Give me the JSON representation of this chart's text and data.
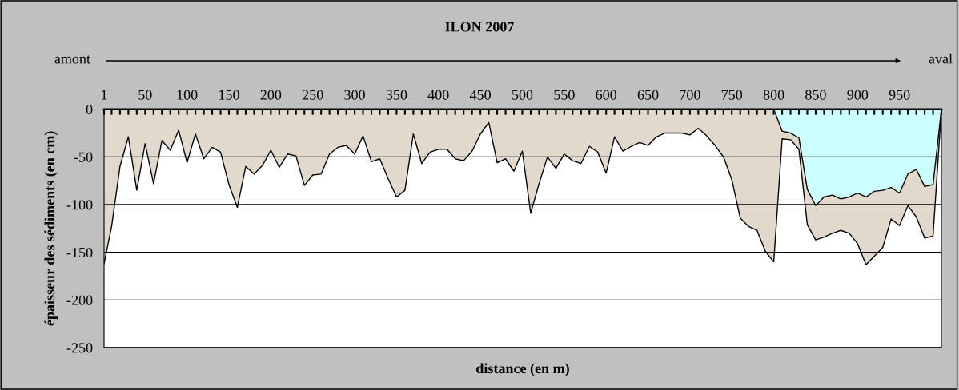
{
  "chart_data": {
    "type": "area",
    "title": "ILON 2007",
    "xlabel": "distance (en m)",
    "ylabel": "épaisseur des sédiments (en cm)",
    "annotations": [
      "amont",
      "aval"
    ],
    "x": [
      1,
      10,
      20,
      30,
      40,
      50,
      60,
      70,
      80,
      90,
      100,
      110,
      120,
      130,
      140,
      150,
      160,
      170,
      180,
      190,
      200,
      210,
      220,
      230,
      240,
      250,
      260,
      270,
      280,
      290,
      300,
      310,
      320,
      330,
      340,
      350,
      360,
      370,
      380,
      390,
      400,
      410,
      420,
      430,
      440,
      450,
      460,
      470,
      480,
      490,
      500,
      510,
      520,
      530,
      540,
      550,
      560,
      570,
      580,
      590,
      600,
      610,
      620,
      630,
      640,
      650,
      660,
      670,
      680,
      690,
      700,
      710,
      720,
      730,
      740,
      750,
      760,
      770,
      780,
      790,
      800,
      810,
      820,
      830,
      840,
      850,
      860,
      870,
      880,
      890,
      900,
      910,
      920,
      930,
      940,
      950,
      960,
      970,
      980,
      990,
      1000
    ],
    "series": [
      {
        "color": "#e0d9cc",
        "values": [
          -162,
          -123,
          -60,
          -29,
          -85,
          -36,
          -78,
          -33,
          -43,
          -22,
          -56,
          -26,
          -52,
          -40,
          -45,
          -79,
          -103,
          -60,
          -68,
          -59,
          -43,
          -61,
          -47,
          -49,
          -80,
          -69,
          -68,
          -47,
          -40,
          -38,
          -47,
          -28,
          -55,
          -52,
          -73,
          -92,
          -85,
          -26,
          -57,
          -45,
          -42,
          -42,
          -52,
          -54,
          -44,
          -26,
          -14,
          -56,
          -52,
          -65,
          -44,
          -109,
          -78,
          -50,
          -62,
          -47,
          -54,
          -57,
          -39,
          -45,
          -67,
          -29,
          -44,
          -39,
          -35,
          -38,
          -29,
          -25,
          -25,
          -25,
          -27,
          -20,
          -28,
          -38,
          -50,
          -74,
          -114,
          -123,
          -127,
          -149,
          -160,
          -31,
          -32,
          -42,
          -121,
          -137,
          -134,
          -130,
          -127,
          -130,
          -141,
          -163,
          -154,
          -145,
          -115,
          -122,
          -101,
          -113,
          -135,
          -133,
          0
        ]
      },
      {
        "color": "#ccffff",
        "values": [
          null,
          null,
          null,
          null,
          null,
          null,
          null,
          null,
          null,
          null,
          null,
          null,
          null,
          null,
          null,
          null,
          null,
          null,
          null,
          null,
          null,
          null,
          null,
          null,
          null,
          null,
          null,
          null,
          null,
          null,
          null,
          null,
          null,
          null,
          null,
          null,
          null,
          null,
          null,
          null,
          null,
          null,
          null,
          null,
          null,
          null,
          null,
          null,
          null,
          null,
          null,
          null,
          null,
          null,
          null,
          null,
          null,
          null,
          null,
          null,
          null,
          null,
          null,
          null,
          null,
          null,
          null,
          null,
          null,
          null,
          null,
          null,
          null,
          null,
          null,
          null,
          null,
          null,
          null,
          null,
          0,
          -23,
          -25,
          -30,
          -84,
          -101,
          -92,
          -90,
          -94,
          -92,
          -88,
          -92,
          -86,
          -85,
          -82,
          -88,
          -68,
          -63,
          -81,
          -79,
          0
        ]
      }
    ],
    "xlim": [
      1,
      1000
    ],
    "xticks": [
      1,
      {
        "value": 10,
        "label": null
      },
      {
        "value": 20,
        "label": null
      },
      {
        "value": 30,
        "label": null
      },
      {
        "value": 40,
        "label": null
      },
      50,
      {
        "value": 60,
        "label": null
      },
      {
        "value": 70,
        "label": null
      },
      {
        "value": 80,
        "label": null
      },
      {
        "value": 90,
        "label": null
      },
      100,
      {
        "value": 110,
        "label": null
      },
      {
        "value": 120,
        "label": null
      },
      {
        "value": 130,
        "label": null
      },
      {
        "value": 140,
        "label": null
      },
      150,
      {
        "value": 160,
        "label": null
      },
      {
        "value": 170,
        "label": null
      },
      {
        "value": 180,
        "label": null
      },
      {
        "value": 190,
        "label": null
      },
      200,
      {
        "value": 210,
        "label": null
      },
      {
        "value": 220,
        "label": null
      },
      {
        "value": 230,
        "label": null
      },
      {
        "value": 240,
        "label": null
      },
      250,
      {
        "value": 260,
        "label": null
      },
      {
        "value": 270,
        "label": null
      },
      {
        "value": 280,
        "label": null
      },
      {
        "value": 290,
        "label": null
      },
      300,
      {
        "value": 310,
        "label": null
      },
      {
        "value": 320,
        "label": null
      },
      {
        "value": 330,
        "label": null
      },
      {
        "value": 340,
        "label": null
      },
      350,
      {
        "value": 360,
        "label": null
      },
      {
        "value": 370,
        "label": null
      },
      {
        "value": 380,
        "label": null
      },
      {
        "value": 390,
        "label": null
      },
      400,
      {
        "value": 410,
        "label": null
      },
      {
        "value": 420,
        "label": null
      },
      {
        "value": 430,
        "label": null
      },
      {
        "value": 440,
        "label": null
      },
      450,
      {
        "value": 460,
        "label": null
      },
      {
        "value": 470,
        "label": null
      },
      {
        "value": 480,
        "label": null
      },
      {
        "value": 490,
        "label": null
      },
      500,
      {
        "value": 510,
        "label": null
      },
      {
        "value": 520,
        "label": null
      },
      {
        "value": 530,
        "label": null
      },
      {
        "value": 540,
        "label": null
      },
      550,
      {
        "value": 560,
        "label": null
      },
      {
        "value": 570,
        "label": null
      },
      {
        "value": 580,
        "label": null
      },
      {
        "value": 590,
        "label": null
      },
      600,
      {
        "value": 610,
        "label": null
      },
      {
        "value": 620,
        "label": null
      },
      {
        "value": 630,
        "label": null
      },
      {
        "value": 640,
        "label": null
      },
      650,
      {
        "value": 660,
        "label": null
      },
      {
        "value": 670,
        "label": null
      },
      {
        "value": 680,
        "label": null
      },
      {
        "value": 690,
        "label": null
      },
      700,
      {
        "value": 710,
        "label": null
      },
      {
        "value": 720,
        "label": null
      },
      {
        "value": 730,
        "label": null
      },
      {
        "value": 740,
        "label": null
      },
      750,
      {
        "value": 760,
        "label": null
      },
      {
        "value": 770,
        "label": null
      },
      {
        "value": 780,
        "label": null
      },
      {
        "value": 790,
        "label": null
      },
      800,
      {
        "value": 810,
        "label": null
      },
      {
        "value": 820,
        "label": null
      },
      {
        "value": 830,
        "label": null
      },
      {
        "value": 840,
        "label": null
      },
      850,
      {
        "value": 860,
        "label": null
      },
      {
        "value": 870,
        "label": null
      },
      {
        "value": 880,
        "label": null
      },
      {
        "value": 890,
        "label": null
      },
      900,
      {
        "value": 910,
        "label": null
      },
      {
        "value": 920,
        "label": null
      },
      {
        "value": 930,
        "label": null
      },
      {
        "value": 940,
        "label": null
      },
      950,
      {
        "value": 960,
        "label": null
      },
      {
        "value": 970,
        "label": null
      },
      {
        "value": 980,
        "label": null
      },
      {
        "value": 990,
        "label": null
      },
      {
        "value": 1000,
        "label": null
      }
    ],
    "ylim": [
      -250,
      0
    ],
    "yticks": [
      0,
      -50,
      -100,
      -150,
      -200,
      -250
    ],
    "grid": "y",
    "legend": false
  }
}
